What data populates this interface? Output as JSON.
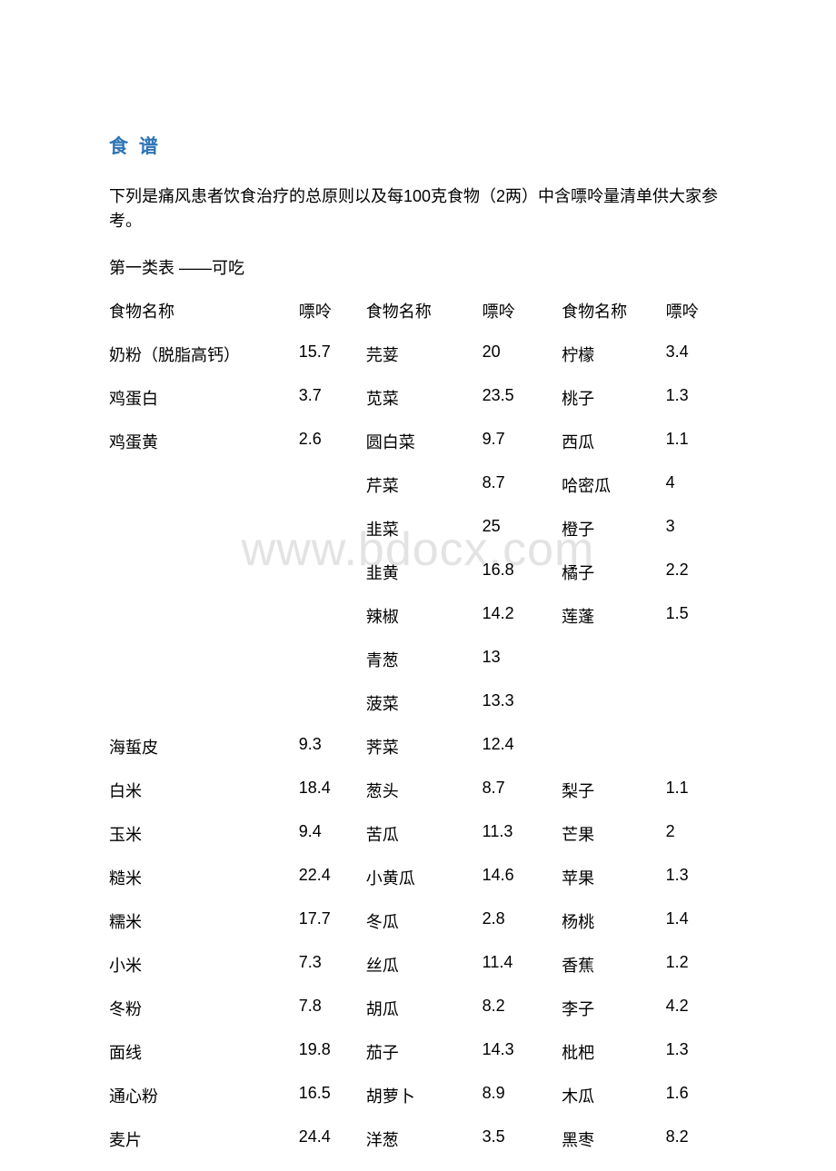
{
  "colors": {
    "title": "#2e74b5",
    "text": "#000000",
    "watermark": "#e3e3e3",
    "background": "#ffffff"
  },
  "title": "食 谱",
  "intro": "下列是痛风患者饮食治疗的总原则以及每100克食物（2两）中含嘌呤量清单供大家参考。",
  "subtitle": "第一类表 ——可吃",
  "watermark": "www.bdocx.com",
  "headers": {
    "name": "食物名称",
    "value": "嘌呤"
  },
  "rows": [
    {
      "n1": "奶粉（脱脂高钙）",
      "v1": "15.7",
      "n2": "芫荽",
      "v2": "20",
      "n3": "柠檬",
      "v3": "3.4"
    },
    {
      "n1": "鸡蛋白",
      "v1": "3.7",
      "n2": "苋菜",
      "v2": "23.5",
      "n3": "桃子",
      "v3": "1.3"
    },
    {
      "n1": "鸡蛋黄",
      "v1": "2.6",
      "n2": "圆白菜",
      "v2": "9.7",
      "n3": "西瓜",
      "v3": "1.1"
    },
    {
      "n1": "",
      "v1": "",
      "n2": "芹菜",
      "v2": "8.7",
      "n3": "哈密瓜",
      "v3": "4"
    },
    {
      "n1": "",
      "v1": "",
      "n2": "韭菜",
      "v2": "25",
      "n3": "橙子",
      "v3": "3"
    },
    {
      "n1": "",
      "v1": "",
      "n2": "韭黄",
      "v2": "16.8",
      "n3": "橘子",
      "v3": "2.2"
    },
    {
      "n1": "",
      "v1": "",
      "n2": "辣椒",
      "v2": "14.2",
      "n3": "莲蓬",
      "v3": "1.5"
    },
    {
      "n1": "",
      "v1": "",
      "n2": "青葱",
      "v2": "13",
      "n3": "",
      "v3": ""
    },
    {
      "n1": "",
      "v1": "",
      "n2": "菠菜",
      "v2": "13.3",
      "n3": "",
      "v3": ""
    },
    {
      "n1": "海蜇皮",
      "v1": "9.3",
      "n2": "荠菜",
      "v2": "12.4",
      "n3": "",
      "v3": ""
    },
    {
      "n1": "白米",
      "v1": "18.4",
      "n2": "葱头",
      "v2": "8.7",
      "n3": "梨子",
      "v3": "1.1"
    },
    {
      "n1": "玉米",
      "v1": "9.4",
      "n2": "苦瓜",
      "v2": "11.3",
      "n3": "芒果",
      "v3": "2"
    },
    {
      "n1": "糙米",
      "v1": "22.4",
      "n2": "小黄瓜",
      "v2": "14.6",
      "n3": "苹果",
      "v3": "1.3"
    },
    {
      "n1": "糯米",
      "v1": "17.7",
      "n2": "冬瓜",
      "v2": "2.8",
      "n3": "杨桃",
      "v3": "1.4"
    },
    {
      "n1": "小米",
      "v1": "7.3",
      "n2": "丝瓜",
      "v2": "11.4",
      "n3": "香蕉",
      "v3": "1.2"
    },
    {
      "n1": "冬粉",
      "v1": "7.8",
      "n2": "胡瓜",
      "v2": "8.2",
      "n3": "李子",
      "v3": "4.2"
    },
    {
      "n1": "面线",
      "v1": "19.8",
      "n2": "茄子",
      "v2": "14.3",
      "n3": "枇杷",
      "v3": "1.3"
    },
    {
      "n1": "通心粉",
      "v1": "16.5",
      "n2": "胡萝卜",
      "v2": "8.9",
      "n3": "木瓜",
      "v3": "1.6"
    },
    {
      "n1": "麦片",
      "v1": "24.4",
      "n2": "洋葱",
      "v2": "3.5",
      "n3": "黑枣",
      "v3": "8.2"
    }
  ]
}
